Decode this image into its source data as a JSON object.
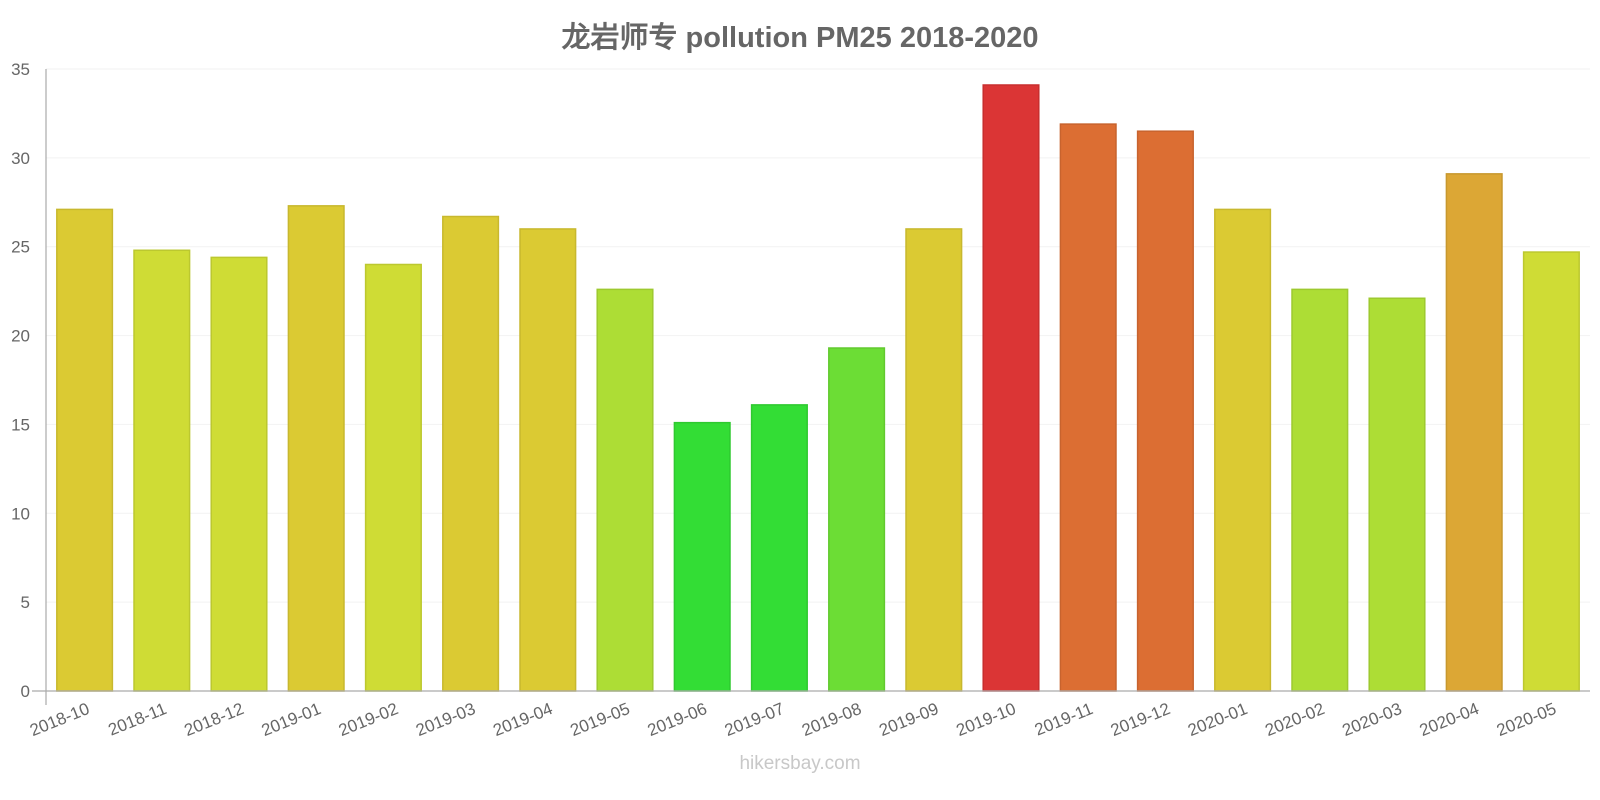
{
  "title": "龙岩师专 pollution PM25 2018-2020",
  "watermark": "hikersbay.com",
  "chart_data": {
    "type": "bar",
    "title": "龙岩师专 pollution PM25 2018-2020",
    "xlabel": "",
    "ylabel": "",
    "ylim": [
      0,
      35
    ],
    "yticks": [
      0,
      5,
      10,
      15,
      20,
      25,
      30,
      35
    ],
    "grid": true,
    "legend": "none",
    "categories": [
      "2018-10",
      "2018-11",
      "2018-12",
      "2019-01",
      "2019-02",
      "2019-03",
      "2019-04",
      "2019-05",
      "2019-06",
      "2019-07",
      "2019-08",
      "2019-09",
      "2019-10",
      "2019-11",
      "2019-12",
      "2020-01",
      "2020-02",
      "2020-03",
      "2020-04",
      "2020-05"
    ],
    "values": [
      27.1,
      24.8,
      24.4,
      27.3,
      24.0,
      26.7,
      26.0,
      22.6,
      15.1,
      16.1,
      19.3,
      26.0,
      34.1,
      31.9,
      31.5,
      27.1,
      22.6,
      22.1,
      29.1,
      24.7
    ],
    "colors": [
      "#dbca33",
      "#cfdc35",
      "#cfdc35",
      "#dbca33",
      "#cfdc35",
      "#dbca33",
      "#dbca33",
      "#addd35",
      "#33dd35",
      "#33dd35",
      "#6cdd35",
      "#dbca33",
      "#db3535",
      "#dc6e33",
      "#dc6e33",
      "#dbca33",
      "#addd35",
      "#addd35",
      "#dca735",
      "#cfdc35"
    ],
    "borders": [
      "#c8b82e",
      "#bcc82f",
      "#bcc82f",
      "#c8b82e",
      "#bcc82f",
      "#c8b82e",
      "#c8b82e",
      "#9dc92f",
      "#2ec92f",
      "#2ec92f",
      "#62c92f",
      "#c8b82e",
      "#c82e2e",
      "#c8632e",
      "#c8632e",
      "#c8b82e",
      "#9dc92f",
      "#9dc92f",
      "#c8982e",
      "#bcc82f"
    ]
  }
}
